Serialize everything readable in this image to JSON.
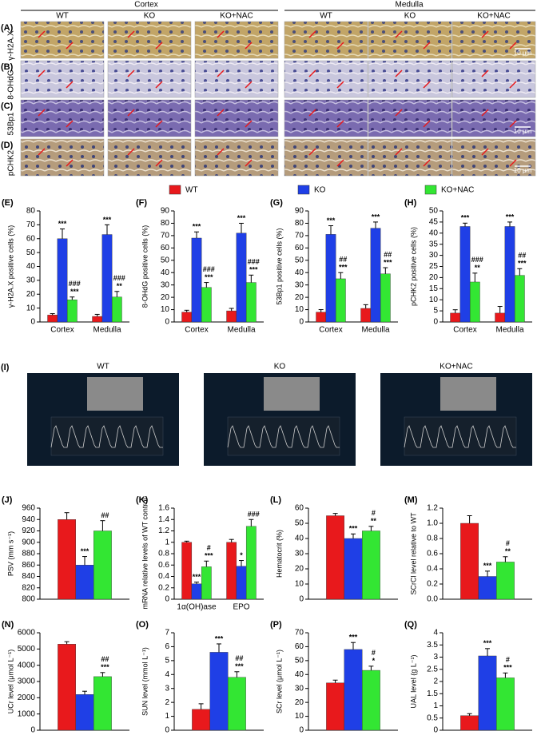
{
  "figure": {
    "groups": [
      "Cortex",
      "Medulla"
    ],
    "columns": [
      "WT",
      "KO",
      "KO+NAC",
      "WT",
      "KO",
      "KO+NAC"
    ],
    "rows": [
      {
        "panel": "(A)",
        "stain": "γ-H2A.X"
      },
      {
        "panel": "(B)",
        "stain": "8-OHdG"
      },
      {
        "panel": "(C)",
        "stain": "53Bp1"
      },
      {
        "panel": "(D)",
        "stain": "pCHK2"
      }
    ],
    "scale_bar": "10 μm",
    "ultrasound": {
      "panel": "(I)",
      "labels": [
        "WT",
        "KO",
        "KO+NAC"
      ]
    }
  },
  "chart_data": [
    {
      "type": "bar",
      "panel": "(E)",
      "ylabel": "γ-H2A.X positive cells (%)",
      "categories": [
        "Cortex",
        "Medulla"
      ],
      "ylim": [
        0,
        80
      ],
      "yticks": [
        0,
        10,
        20,
        30,
        40,
        50,
        60,
        70,
        80
      ],
      "series": [
        {
          "name": "WT",
          "color": "#e8191c",
          "values": [
            5,
            4
          ],
          "errors": [
            1,
            1.5
          ]
        },
        {
          "name": "KO",
          "color": "#1f3fe6",
          "values": [
            60,
            63
          ],
          "errors": [
            7,
            7
          ],
          "annotations": [
            [
              "***"
            ],
            [
              "***"
            ]
          ]
        },
        {
          "name": "KO+NAC",
          "color": "#33e633",
          "values": [
            16,
            18
          ],
          "errors": [
            2,
            4
          ],
          "annotations": [
            [
              "###",
              "***"
            ],
            [
              "###",
              "**"
            ]
          ]
        }
      ]
    },
    {
      "type": "bar",
      "panel": "(F)",
      "ylabel": "8-OHdG positive cells (%)",
      "categories": [
        "Cortex",
        "Medulla"
      ],
      "ylim": [
        0,
        90
      ],
      "yticks": [
        0,
        10,
        20,
        30,
        40,
        50,
        60,
        70,
        80,
        90
      ],
      "series": [
        {
          "name": "WT",
          "color": "#e8191c",
          "values": [
            8,
            9
          ],
          "errors": [
            1.5,
            2
          ]
        },
        {
          "name": "KO",
          "color": "#1f3fe6",
          "values": [
            68,
            72
          ],
          "errors": [
            5,
            8
          ],
          "annotations": [
            [
              "***"
            ],
            [
              "***"
            ]
          ]
        },
        {
          "name": "KO+NAC",
          "color": "#33e633",
          "values": [
            28,
            32
          ],
          "errors": [
            4,
            6
          ],
          "annotations": [
            [
              "###",
              "***"
            ],
            [
              "###",
              "***"
            ]
          ]
        }
      ]
    },
    {
      "type": "bar",
      "panel": "(G)",
      "ylabel": "53Bp1 positive cells (%)",
      "categories": [
        "Cortex",
        "Medulla"
      ],
      "ylim": [
        0,
        90
      ],
      "yticks": [
        0,
        10,
        20,
        30,
        40,
        50,
        60,
        70,
        80,
        90
      ],
      "series": [
        {
          "name": "WT",
          "color": "#e8191c",
          "values": [
            8,
            11
          ],
          "errors": [
            2,
            3
          ]
        },
        {
          "name": "KO",
          "color": "#1f3fe6",
          "values": [
            71,
            76
          ],
          "errors": [
            7,
            5
          ],
          "annotations": [
            [
              "***"
            ],
            [
              "***"
            ]
          ]
        },
        {
          "name": "KO+NAC",
          "color": "#33e633",
          "values": [
            35,
            39
          ],
          "errors": [
            5,
            5
          ],
          "annotations": [
            [
              "##",
              "***"
            ],
            [
              "##",
              "***"
            ]
          ]
        }
      ]
    },
    {
      "type": "bar",
      "panel": "(H)",
      "ylabel": "pCHK2 positive cells (%)",
      "categories": [
        "Cortex",
        "Medulla"
      ],
      "ylim": [
        0,
        50
      ],
      "yticks": [
        0,
        5,
        10,
        15,
        20,
        25,
        30,
        35,
        40,
        45,
        50
      ],
      "series": [
        {
          "name": "WT",
          "color": "#e8191c",
          "values": [
            4,
            4
          ],
          "errors": [
            1.5,
            3
          ]
        },
        {
          "name": "KO",
          "color": "#1f3fe6",
          "values": [
            43,
            43
          ],
          "errors": [
            1.5,
            2
          ],
          "annotations": [
            [
              "***"
            ],
            [
              "***"
            ]
          ]
        },
        {
          "name": "KO+NAC",
          "color": "#33e633",
          "values": [
            18,
            21
          ],
          "errors": [
            4,
            3
          ],
          "annotations": [
            [
              "###",
              "**"
            ],
            [
              "##",
              "***"
            ]
          ]
        }
      ]
    },
    {
      "type": "bar",
      "panel": "(J)",
      "ylabel": "PSV (mm s⁻¹)",
      "categories": [
        null
      ],
      "ylim": [
        800,
        960
      ],
      "yticks": [
        800,
        820,
        840,
        860,
        880,
        900,
        920,
        940,
        960
      ],
      "series": [
        {
          "name": "WT",
          "color": "#e8191c",
          "values": [
            940
          ],
          "errors": [
            12
          ]
        },
        {
          "name": "KO",
          "color": "#1f3fe6",
          "values": [
            860
          ],
          "errors": [
            15
          ],
          "annotations": [
            [
              "***"
            ]
          ]
        },
        {
          "name": "KO+NAC",
          "color": "#33e633",
          "values": [
            920
          ],
          "errors": [
            18
          ],
          "annotations": [
            [
              "##"
            ]
          ]
        }
      ]
    },
    {
      "type": "bar",
      "panel": "(K)",
      "ylabel": "mRNA  relative levels of WT control",
      "categories": [
        "1α(OH)ase",
        "EPO"
      ],
      "ylim": [
        0,
        1.6
      ],
      "yticks": [
        0,
        0.2,
        0.4,
        0.6,
        0.8,
        1,
        1.2,
        1.4,
        1.6
      ],
      "series": [
        {
          "name": "WT",
          "color": "#e8191c",
          "values": [
            1,
            1
          ],
          "errors": [
            0.02,
            0.05
          ]
        },
        {
          "name": "KO",
          "color": "#1f3fe6",
          "values": [
            0.27,
            0.58
          ],
          "errors": [
            0.03,
            0.1
          ],
          "annotations": [
            [
              "***"
            ],
            [
              "*"
            ]
          ]
        },
        {
          "name": "KO+NAC",
          "color": "#33e633",
          "values": [
            0.57,
            1.28
          ],
          "errors": [
            0.1,
            0.12
          ],
          "annotations": [
            [
              "#",
              "***"
            ],
            [
              "###"
            ]
          ]
        }
      ]
    },
    {
      "type": "bar",
      "panel": "(L)",
      "ylabel": "Hematocrit (%)",
      "categories": [
        null
      ],
      "ylim": [
        0,
        60
      ],
      "yticks": [
        0,
        10,
        20,
        30,
        40,
        50,
        60
      ],
      "series": [
        {
          "name": "WT",
          "color": "#e8191c",
          "values": [
            55
          ],
          "errors": [
            1.5
          ]
        },
        {
          "name": "KO",
          "color": "#1f3fe6",
          "values": [
            40
          ],
          "errors": [
            3
          ],
          "annotations": [
            [
              "***"
            ]
          ]
        },
        {
          "name": "KO+NAC",
          "color": "#33e633",
          "values": [
            45
          ],
          "errors": [
            3
          ],
          "annotations": [
            [
              "#",
              "**"
            ]
          ]
        }
      ]
    },
    {
      "type": "bar",
      "panel": "(M)",
      "ylabel": "SCrCl level relative to WT",
      "categories": [
        null
      ],
      "ylim": [
        0,
        1.2
      ],
      "yticks": [
        {
          "value": 0,
          "label": "0.0"
        },
        0.2,
        0.4,
        0.6,
        0.8,
        {
          "value": 1,
          "label": "1.0"
        },
        1.2
      ],
      "series": [
        {
          "name": "WT",
          "color": "#e8191c",
          "values": [
            1.0
          ],
          "errors": [
            0.1
          ]
        },
        {
          "name": "KO",
          "color": "#1f3fe6",
          "values": [
            0.3
          ],
          "errors": [
            0.07
          ],
          "annotations": [
            [
              "***"
            ]
          ]
        },
        {
          "name": "KO+NAC",
          "color": "#33e633",
          "values": [
            0.49
          ],
          "errors": [
            0.07
          ],
          "annotations": [
            [
              "#",
              "**"
            ]
          ]
        }
      ]
    },
    {
      "type": "bar",
      "panel": "(N)",
      "ylabel": "UCr level (μmol L⁻¹)",
      "categories": [
        null
      ],
      "ylim": [
        0,
        6000
      ],
      "yticks": [
        0,
        1000,
        2000,
        3000,
        4000,
        5000,
        6000
      ],
      "series": [
        {
          "name": "WT",
          "color": "#e8191c",
          "values": [
            5300
          ],
          "errors": [
            150
          ]
        },
        {
          "name": "KO",
          "color": "#1f3fe6",
          "values": [
            2200
          ],
          "errors": [
            200
          ]
        },
        {
          "name": "KO+NAC",
          "color": "#33e633",
          "values": [
            3300
          ],
          "errors": [
            250
          ],
          "annotations": [
            [
              "##",
              "***"
            ]
          ]
        }
      ]
    },
    {
      "type": "bar",
      "panel": "(O)",
      "ylabel": "SUN level (mmol L⁻¹)",
      "categories": [
        null
      ],
      "ylim": [
        0,
        7
      ],
      "yticks": [
        0,
        1,
        2,
        3,
        4,
        5,
        6,
        7
      ],
      "series": [
        {
          "name": "WT",
          "color": "#e8191c",
          "values": [
            1.5
          ],
          "errors": [
            0.4
          ]
        },
        {
          "name": "KO",
          "color": "#1f3fe6",
          "values": [
            5.6
          ],
          "errors": [
            0.6
          ],
          "annotations": [
            [
              "***"
            ]
          ]
        },
        {
          "name": "KO+NAC",
          "color": "#33e633",
          "values": [
            3.8
          ],
          "errors": [
            0.4
          ],
          "annotations": [
            [
              "##",
              "***"
            ]
          ]
        }
      ]
    },
    {
      "type": "bar",
      "panel": "(P)",
      "ylabel": "SCr level (μmol L⁻¹)",
      "categories": [
        null
      ],
      "ylim": [
        0,
        70
      ],
      "yticks": [
        0,
        10,
        20,
        30,
        40,
        50,
        60,
        70
      ],
      "series": [
        {
          "name": "WT",
          "color": "#e8191c",
          "values": [
            34
          ],
          "errors": [
            2
          ]
        },
        {
          "name": "KO",
          "color": "#1f3fe6",
          "values": [
            58
          ],
          "errors": [
            5
          ],
          "annotations": [
            [
              "***"
            ]
          ]
        },
        {
          "name": "KO+NAC",
          "color": "#33e633",
          "values": [
            43
          ],
          "errors": [
            3
          ],
          "annotations": [
            [
              "#",
              "*"
            ]
          ]
        }
      ]
    },
    {
      "type": "bar",
      "panel": "(Q)",
      "ylabel": "UAL level (g L⁻¹)",
      "categories": [
        null
      ],
      "ylim": [
        0,
        4
      ],
      "yticks": [
        0,
        0.5,
        1,
        1.5,
        2,
        2.5,
        3,
        3.5,
        4
      ],
      "series": [
        {
          "name": "WT",
          "color": "#e8191c",
          "values": [
            0.6
          ],
          "errors": [
            0.08
          ]
        },
        {
          "name": "KO",
          "color": "#1f3fe6",
          "values": [
            3.05
          ],
          "errors": [
            0.3
          ],
          "annotations": [
            [
              "***"
            ]
          ]
        },
        {
          "name": "KO+NAC",
          "color": "#33e633",
          "values": [
            2.15
          ],
          "errors": [
            0.2
          ],
          "annotations": [
            [
              "#",
              "***"
            ]
          ]
        }
      ]
    }
  ]
}
